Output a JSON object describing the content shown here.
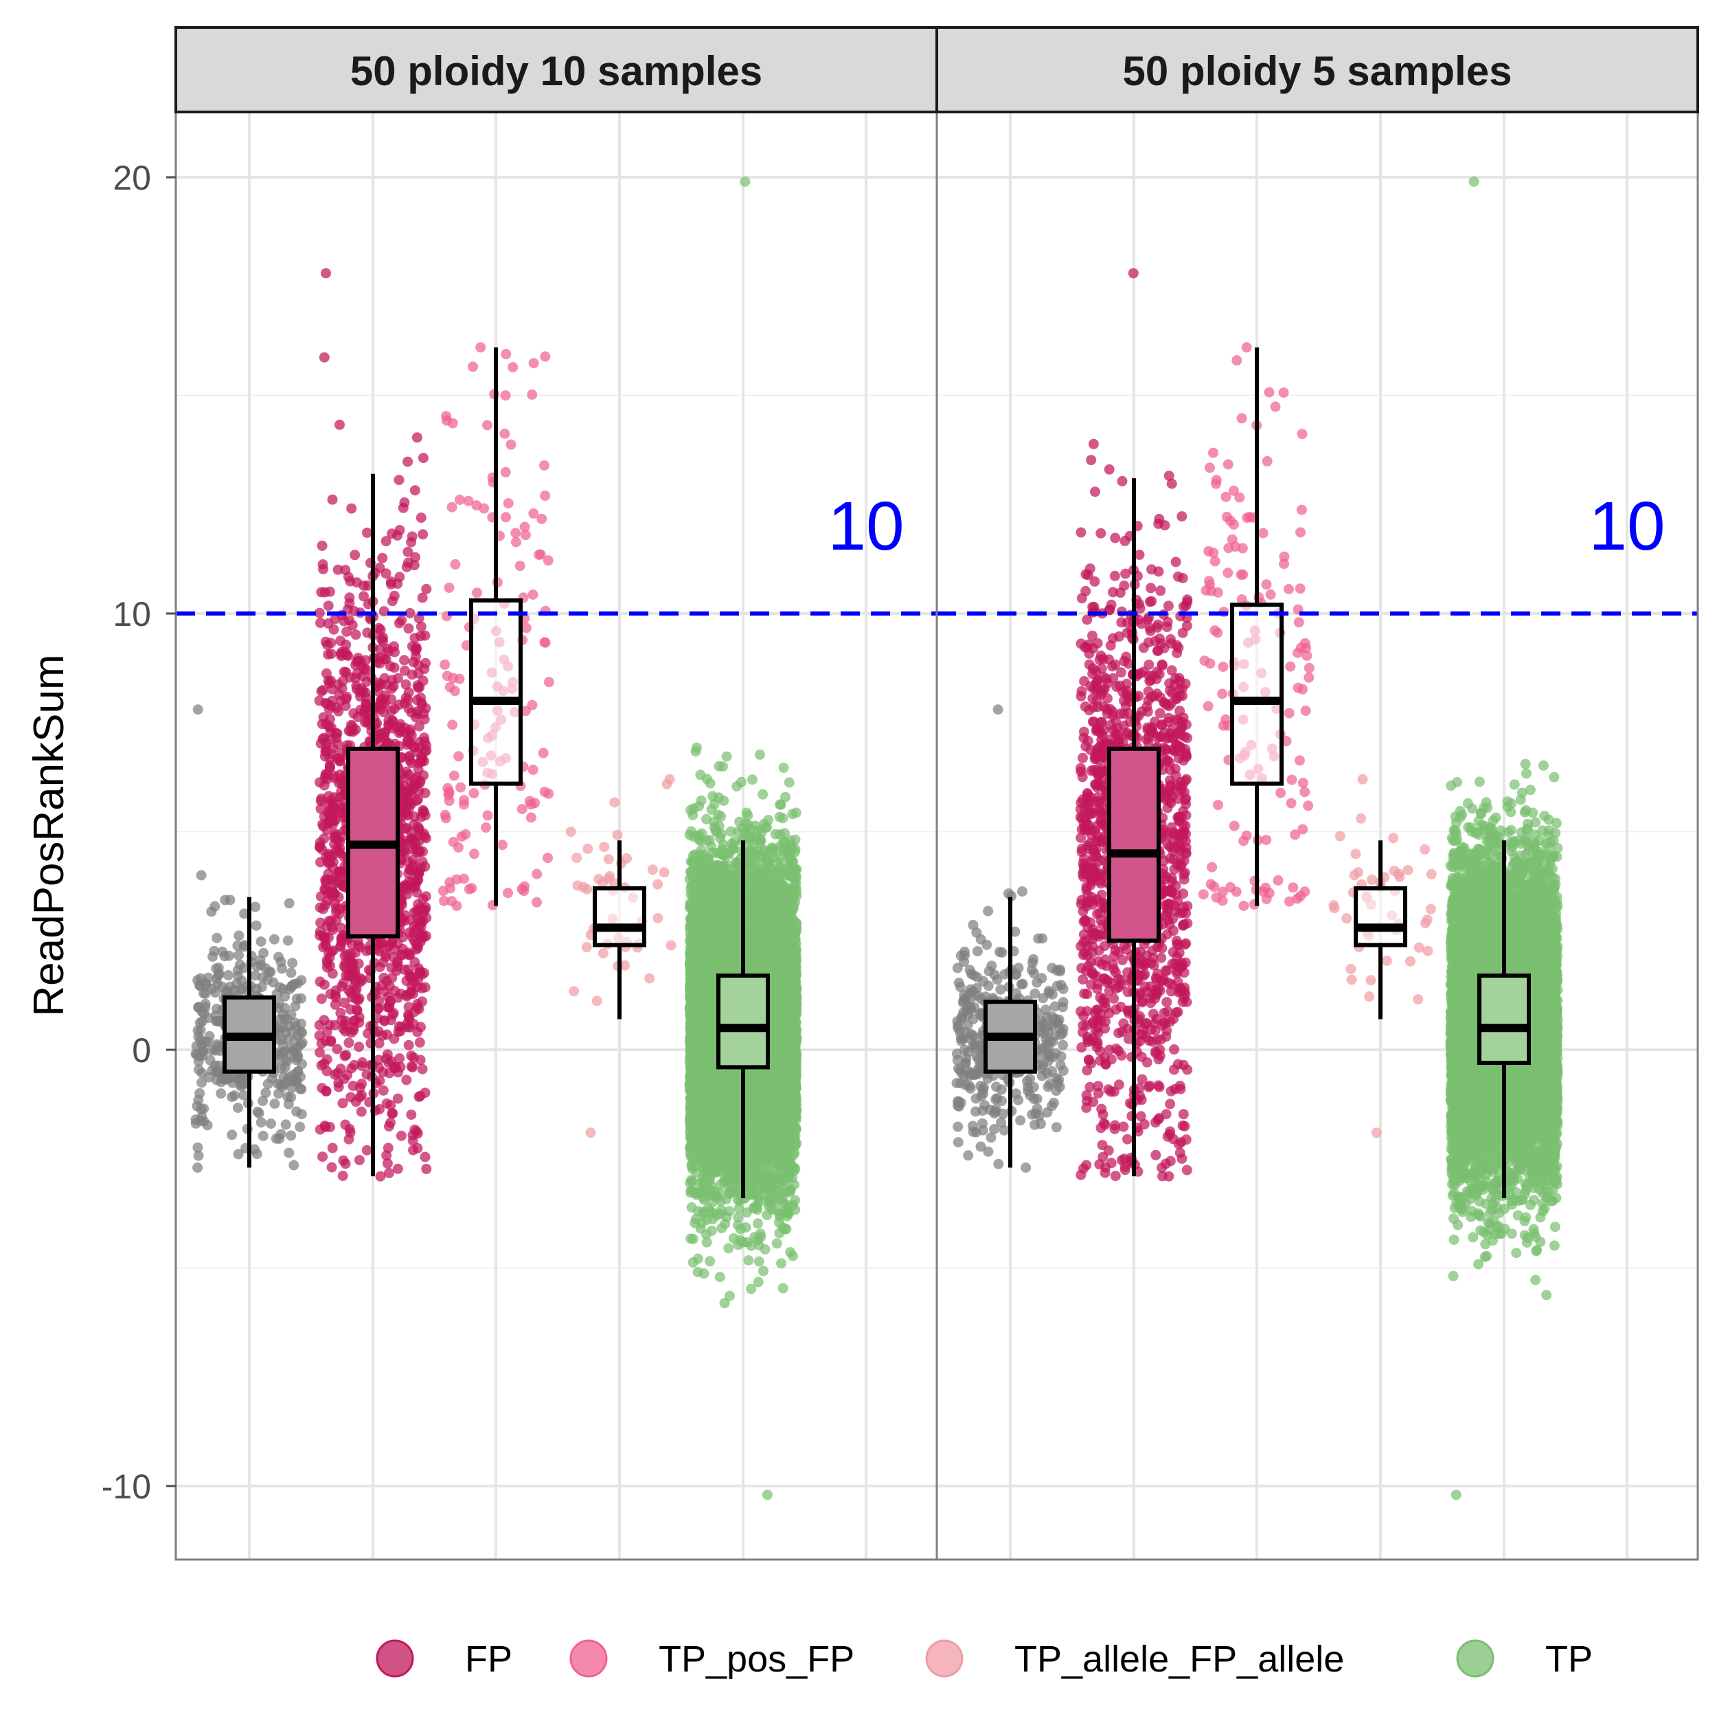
{
  "chart_data": {
    "type": "box+jitter",
    "ylabel": "ReadPosRankSum",
    "xlabel": "",
    "ylim": [
      -11.6,
      21.4
    ],
    "y_ticks": [
      -10,
      0,
      10,
      20
    ],
    "grid": true,
    "legend_position": "bottom",
    "categories": [
      "(grey)",
      "FP",
      "TP_pos_FP",
      "TP_allele_FP_allele",
      "TP"
    ],
    "threshold": {
      "value": 10,
      "label": "10",
      "color": "#0000ff",
      "style": "dashed"
    },
    "colors": {
      "grey": "#7f7f7f",
      "FP": "#c2185b",
      "TP_pos_FP": "#f06292",
      "TP_allele_FP_allele": "#f09ca4",
      "TP": "#7abf70"
    },
    "legend": [
      {
        "name": "FP",
        "color": "#c2185b"
      },
      {
        "name": "TP_pos_FP",
        "color": "#f06292"
      },
      {
        "name": "TP_allele_FP_allele",
        "color": "#f09ca4"
      },
      {
        "name": "TP",
        "color": "#7abf70"
      }
    ],
    "panels": [
      {
        "title": "50 ploidy 10 samples",
        "groups": [
          {
            "category": "(grey)",
            "color_key": "grey",
            "box": {
              "min": -2.7,
              "q1": -0.5,
              "median": 0.3,
              "q3": 1.2,
              "max": 3.5
            },
            "points_range": [
              -2.7,
              7.8
            ],
            "n_points": 380
          },
          {
            "category": "FP",
            "color_key": "FP",
            "box": {
              "min": -2.9,
              "q1": 2.6,
              "median": 4.7,
              "q3": 6.9,
              "max": 13.2
            },
            "points_range": [
              -2.9,
              17.8
            ],
            "n_points": 1300
          },
          {
            "category": "TP_pos_FP",
            "color_key": "TP_pos_FP",
            "box": {
              "min": 3.3,
              "q1": 6.1,
              "median": 8.0,
              "q3": 10.3,
              "max": 16.1
            },
            "points_range": [
              3.3,
              16.1
            ],
            "n_points": 140
          },
          {
            "category": "TP_allele_FP_allele",
            "color_key": "TP_allele_FP_allele",
            "box": {
              "min": 0.7,
              "q1": 2.4,
              "median": 2.8,
              "q3": 3.7,
              "max": 4.8
            },
            "points_range": [
              -1.9,
              6.2
            ],
            "n_points": 45
          },
          {
            "category": "TP",
            "color_key": "TP",
            "box": {
              "min": -3.4,
              "q1": -0.4,
              "median": 0.5,
              "q3": 1.7,
              "max": 4.8
            },
            "points_range": [
              -10.2,
              19.9
            ],
            "n_points": 9000
          }
        ]
      },
      {
        "title": "50 ploidy 5 samples",
        "groups": [
          {
            "category": "(grey)",
            "color_key": "grey",
            "box": {
              "min": -2.7,
              "q1": -0.5,
              "median": 0.3,
              "q3": 1.1,
              "max": 3.5
            },
            "points_range": [
              -2.7,
              7.8
            ],
            "n_points": 380
          },
          {
            "category": "FP",
            "color_key": "FP",
            "box": {
              "min": -2.9,
              "q1": 2.5,
              "median": 4.5,
              "q3": 6.9,
              "max": 13.1
            },
            "points_range": [
              -2.9,
              17.8
            ],
            "n_points": 1300
          },
          {
            "category": "TP_pos_FP",
            "color_key": "TP_pos_FP",
            "box": {
              "min": 3.3,
              "q1": 6.1,
              "median": 8.0,
              "q3": 10.2,
              "max": 16.1
            },
            "points_range": [
              3.3,
              16.1
            ],
            "n_points": 140
          },
          {
            "category": "TP_allele_FP_allele",
            "color_key": "TP_allele_FP_allele",
            "box": {
              "min": 0.7,
              "q1": 2.4,
              "median": 2.8,
              "q3": 3.7,
              "max": 4.8
            },
            "points_range": [
              -1.9,
              6.2
            ],
            "n_points": 45
          },
          {
            "category": "TP",
            "color_key": "TP",
            "box": {
              "min": -3.4,
              "q1": -0.3,
              "median": 0.5,
              "q3": 1.7,
              "max": 4.8
            },
            "points_range": [
              -10.2,
              19.9
            ],
            "n_points": 9000
          }
        ]
      }
    ]
  }
}
